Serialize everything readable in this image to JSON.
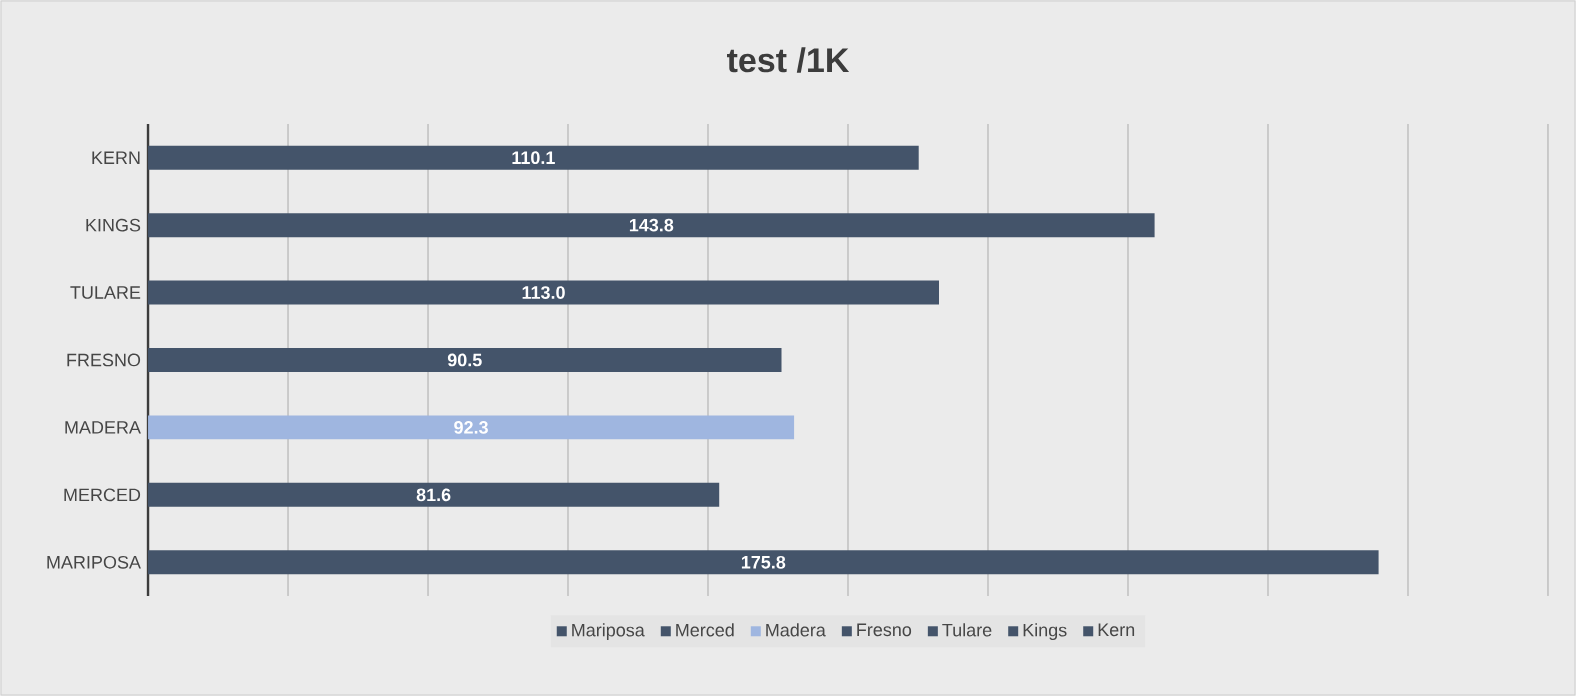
{
  "chart_data": {
    "type": "bar",
    "orientation": "horizontal",
    "title": "test /1K",
    "categories": [
      "KERN",
      "KINGS",
      "TULARE",
      "FRESNO",
      "MADERA",
      "MERCED",
      "MARIPOSA"
    ],
    "series": [
      {
        "name": "Mariposa",
        "color": "#44546a",
        "values": [
          null,
          null,
          null,
          null,
          null,
          null,
          175.8
        ],
        "value_labels": [
          null,
          null,
          null,
          null,
          null,
          null,
          "175.8"
        ]
      },
      {
        "name": "Merced",
        "color": "#44546a",
        "values": [
          null,
          null,
          null,
          null,
          null,
          81.6,
          null
        ],
        "value_labels": [
          null,
          null,
          null,
          null,
          null,
          "81.6",
          null
        ]
      },
      {
        "name": "Madera",
        "color": "#9fb6e0",
        "values": [
          null,
          null,
          null,
          null,
          92.3,
          null,
          null
        ],
        "value_labels": [
          null,
          null,
          null,
          null,
          "92.3",
          null,
          null
        ]
      },
      {
        "name": "Fresno",
        "color": "#44546a",
        "values": [
          null,
          null,
          null,
          90.5,
          null,
          null,
          null
        ],
        "value_labels": [
          null,
          null,
          null,
          "90.5",
          null,
          null,
          null
        ]
      },
      {
        "name": "Tulare",
        "color": "#44546a",
        "values": [
          null,
          null,
          113.0,
          null,
          null,
          null,
          null
        ],
        "value_labels": [
          null,
          null,
          "113.0",
          null,
          null,
          null,
          null
        ]
      },
      {
        "name": "Kings",
        "color": "#44546a",
        "values": [
          null,
          143.8,
          null,
          null,
          null,
          null,
          null
        ],
        "value_labels": [
          null,
          "143.8",
          null,
          null,
          null,
          null,
          null
        ]
      },
      {
        "name": "Kern",
        "color": "#44546a",
        "values": [
          110.1,
          null,
          null,
          null,
          null,
          null,
          null
        ],
        "value_labels": [
          "110.1",
          null,
          null,
          null,
          null,
          null,
          null
        ]
      }
    ],
    "xlim": [
      0,
      200
    ],
    "xticks": [
      {
        "value": 0,
        "label": null
      },
      {
        "value": 20,
        "label": null
      },
      {
        "value": 40,
        "label": null
      },
      {
        "value": 60,
        "label": null
      },
      {
        "value": 80,
        "label": null
      },
      {
        "value": 100,
        "label": null
      },
      {
        "value": 120,
        "label": null
      },
      {
        "value": 140,
        "label": null
      },
      {
        "value": 160,
        "label": null
      },
      {
        "value": 180,
        "label": null
      },
      {
        "value": 200,
        "label": null
      }
    ],
    "tick_labels": "y",
    "grid": "x",
    "legend": "bottom"
  }
}
